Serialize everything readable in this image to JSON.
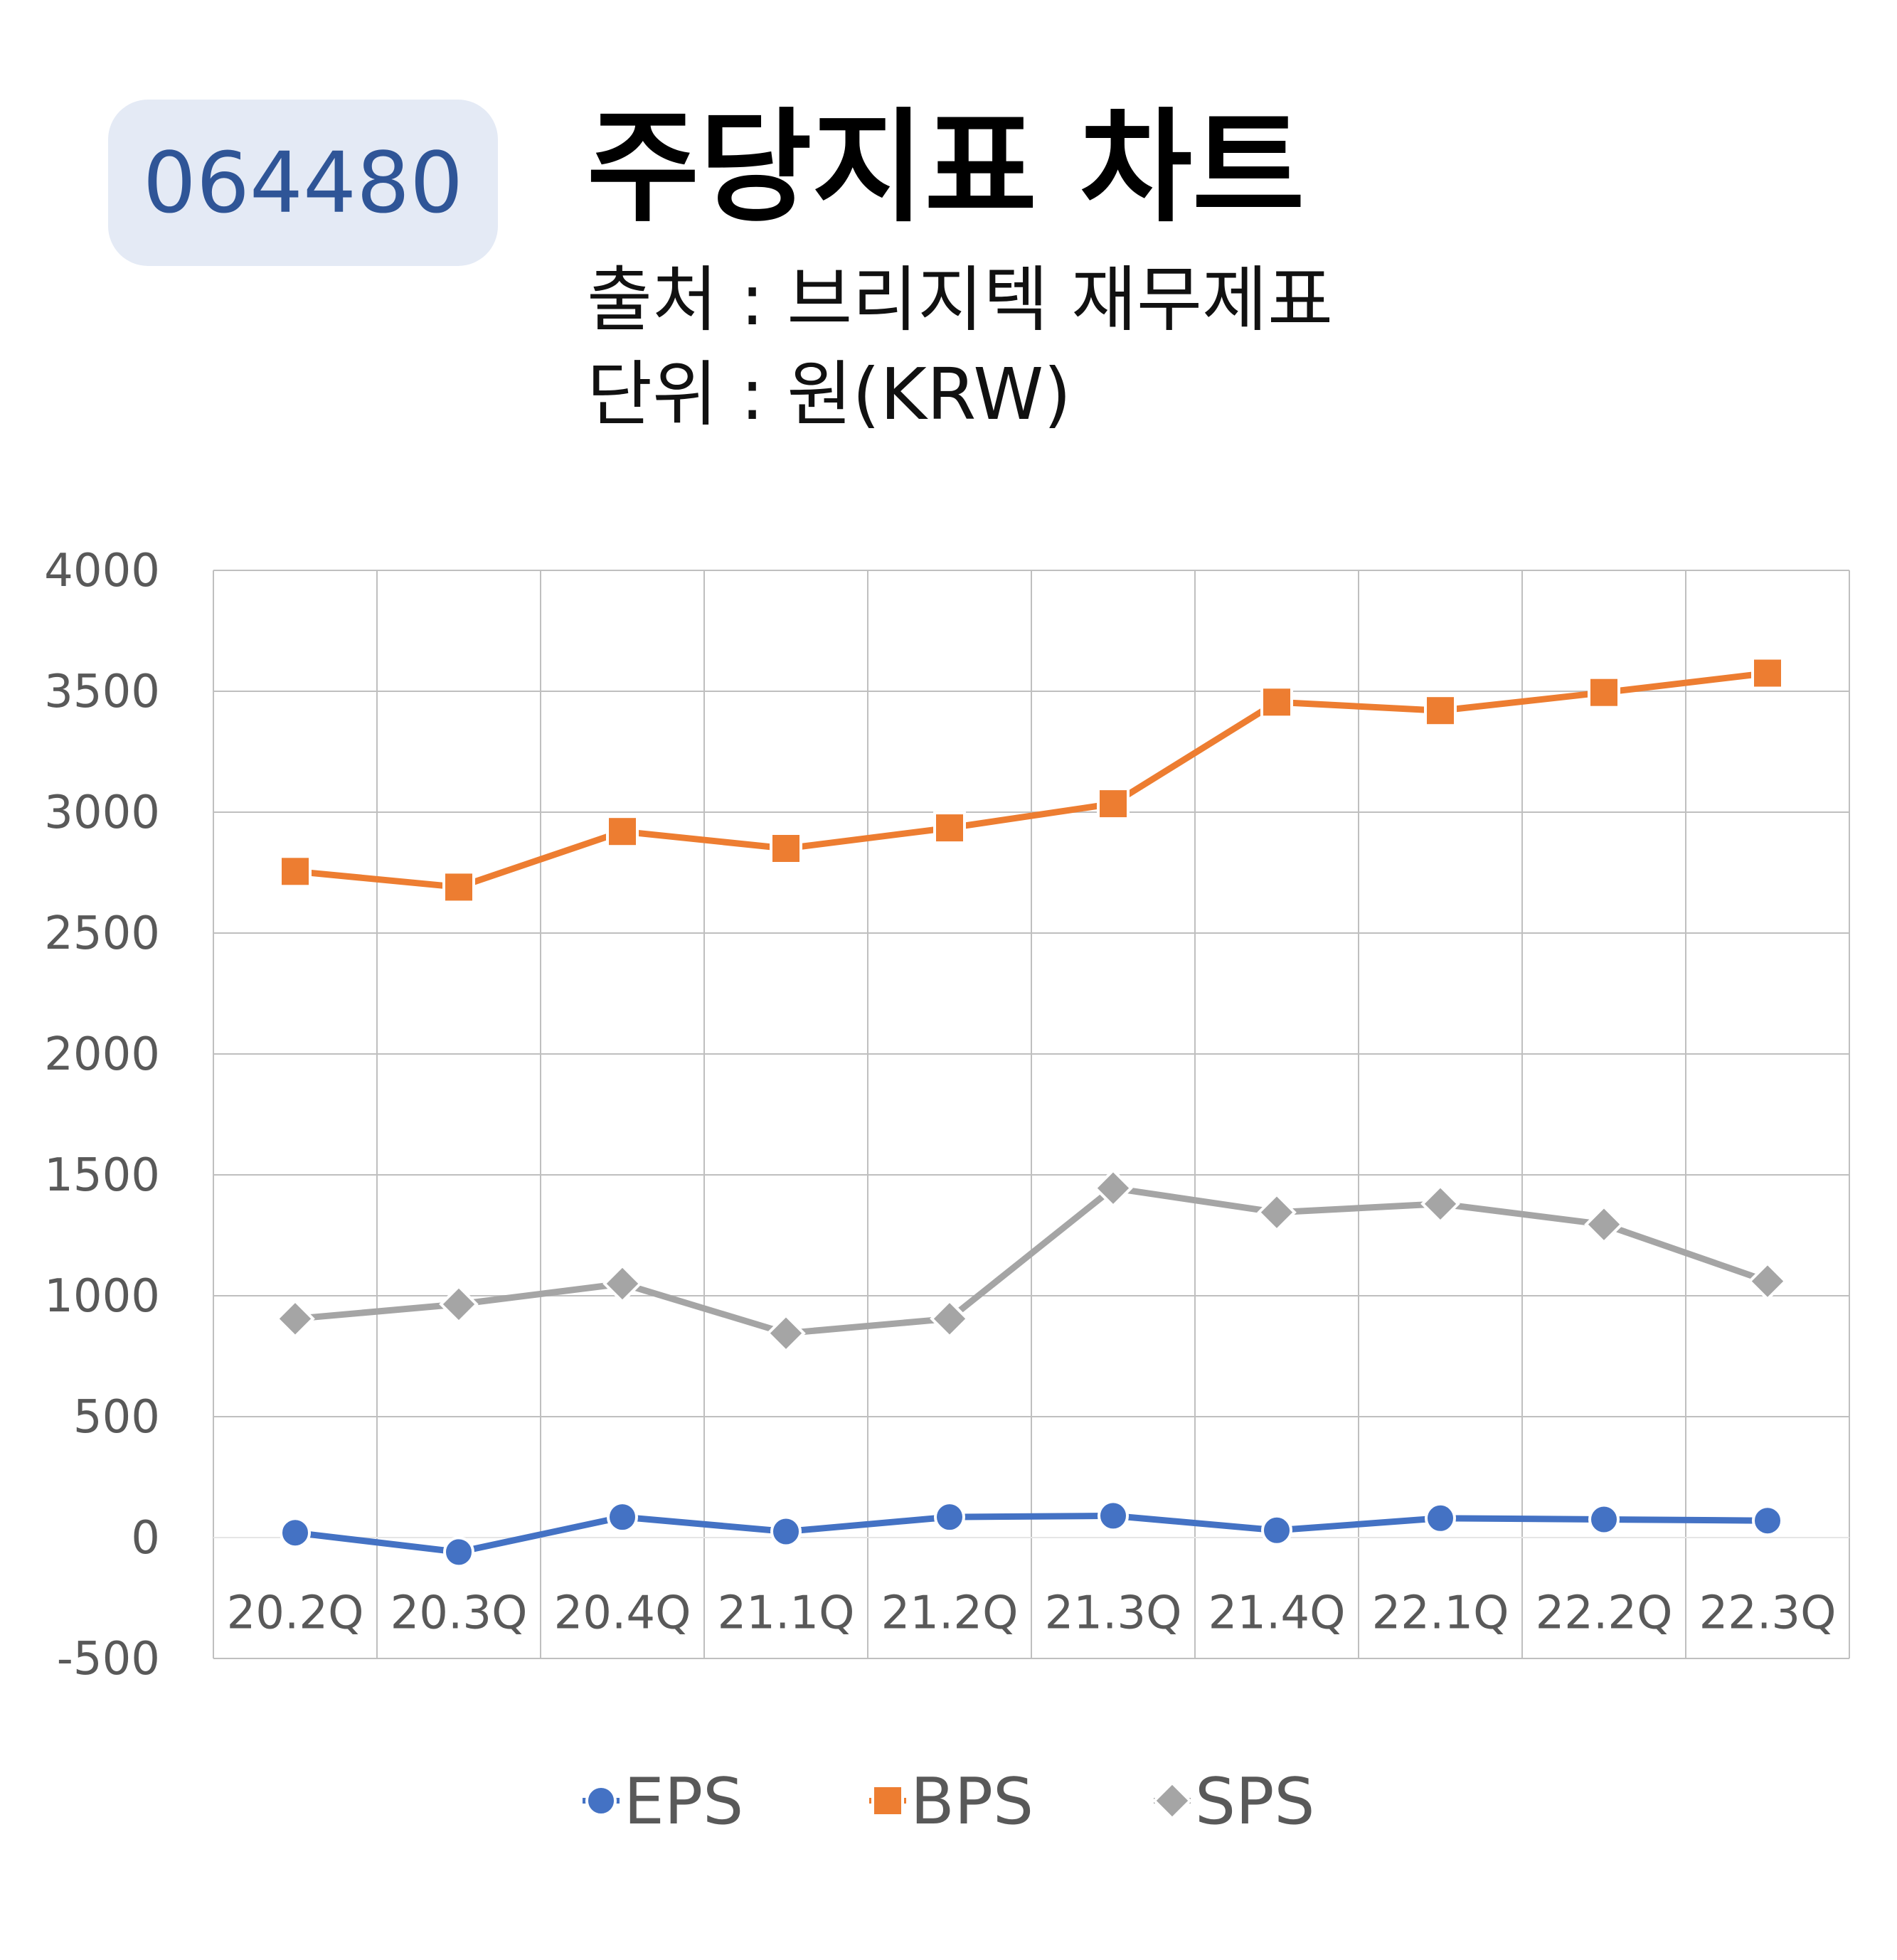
{
  "header": {
    "ticker": "064480",
    "title": "주당지표 차트",
    "source": "출처 : 브리지텍 재무제표",
    "unit": "단위 : 원(KRW)"
  },
  "chart_data": {
    "type": "line",
    "title": "주당지표 차트",
    "categories": [
      "20.2Q",
      "20.3Q",
      "20.4Q",
      "21.1Q",
      "21.2Q",
      "21.3Q",
      "21.4Q",
      "22.1Q",
      "22.2Q",
      "22.3Q"
    ],
    "ylim": [
      -500,
      4000
    ],
    "yticks": [
      4000,
      3500,
      3000,
      2500,
      2000,
      1500,
      1000,
      500,
      0,
      -500
    ],
    "grid": true,
    "legend_position": "bottom",
    "series": [
      {
        "name": "EPS",
        "color": "#4472c4",
        "marker": "circle",
        "values": [
          20,
          -60,
          85,
          25,
          85,
          90,
          30,
          80,
          75,
          70
        ]
      },
      {
        "name": "BPS",
        "color": "#ed7d31",
        "marker": "square",
        "values": [
          2755,
          2690,
          2920,
          2850,
          2935,
          3035,
          3455,
          3420,
          3495,
          3575
        ]
      },
      {
        "name": "SPS",
        "color": "#a5a5a5",
        "marker": "diamond",
        "values": [
          905,
          965,
          1050,
          845,
          905,
          1445,
          1345,
          1380,
          1295,
          1060
        ]
      }
    ]
  }
}
